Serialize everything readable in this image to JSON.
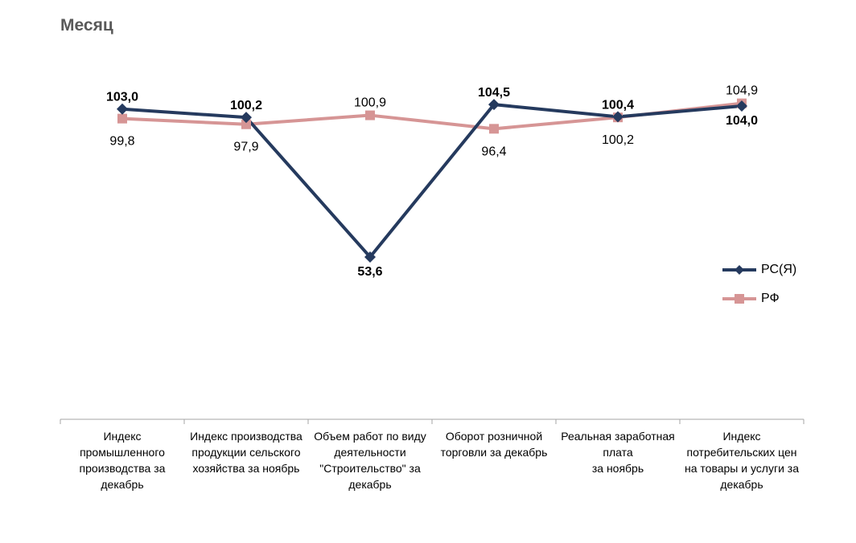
{
  "chart_data": {
    "type": "line",
    "title": "Месяц",
    "categories": [
      "Индекс промышленного производства за декабрь",
      "Индекс производства продукции сельского хозяйства за ноябрь",
      "Объем работ по виду деятельности \"Строительство\" за декабрь",
      "Оборот розничной торговли за декабрь",
      "Реальная заработная плата за ноябрь",
      "Индекс потребительских цен на товары и услуги за декабрь"
    ],
    "category_lines": [
      [
        "Индекс",
        "промышленного",
        "производства за",
        "декабрь"
      ],
      [
        "Индекс производства",
        "продукции сельского",
        "хозяйства за ноябрь"
      ],
      [
        "Объем работ по виду",
        "деятельности",
        "\"Строительство\" за",
        "декабрь"
      ],
      [
        "Оборот розничной",
        "торговли за декабрь"
      ],
      [
        "Реальная заработная",
        "плата",
        "за ноябрь"
      ],
      [
        "Индекс",
        "потребительских цен",
        "на товары и услуги за",
        "декабрь"
      ]
    ],
    "series": [
      {
        "name": "РС(Я)",
        "values": [
          103.0,
          100.2,
          53.6,
          104.5,
          100.4,
          104.0
        ],
        "labels": [
          "103,0",
          "100,2",
          "53,6",
          "104,5",
          "100,4",
          "104,0"
        ],
        "color": "#253a5e",
        "marker": "diamond"
      },
      {
        "name": "РФ",
        "values": [
          99.8,
          97.9,
          100.9,
          96.4,
          100.2,
          104.9
        ],
        "labels": [
          "99,8",
          "97,9",
          "100,9",
          "96,4",
          "100,2",
          "104,9"
        ],
        "color": "#d69595",
        "marker": "square"
      }
    ],
    "legend_position": "right",
    "grid": false
  }
}
